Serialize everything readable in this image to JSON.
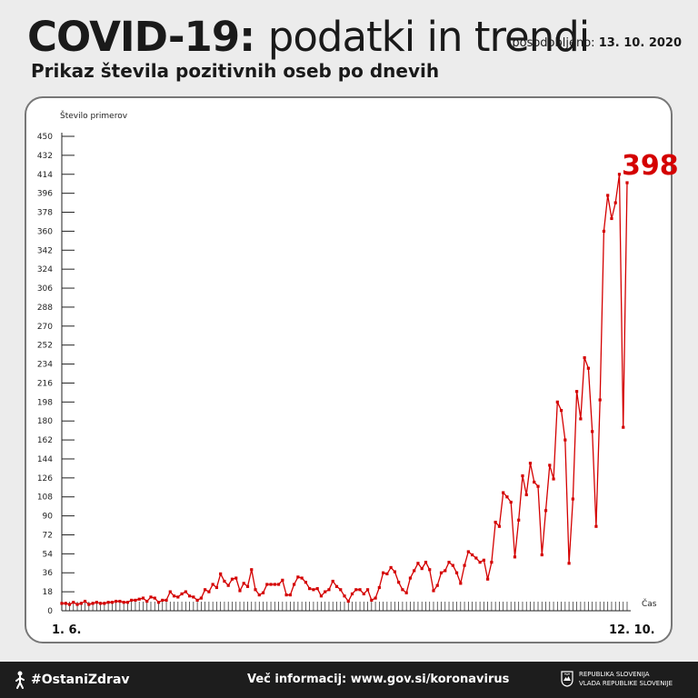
{
  "header": {
    "title_bold": "COVID-19:",
    "title_light": "podatki in trendi",
    "updated_label": "posodobljeno:",
    "updated_date": "13. 10. 2020",
    "subtitle": "Prikaz števila pozitivnih oseb po dnevih"
  },
  "chart_data": {
    "type": "line",
    "title": "Prikaz števila pozitivnih oseb po dnevih",
    "ylabel": "Število primerov",
    "xlabel": "Čas",
    "ylim": [
      0,
      450
    ],
    "yticks": [
      0,
      18,
      36,
      54,
      72,
      90,
      108,
      126,
      144,
      162,
      180,
      198,
      216,
      234,
      252,
      270,
      288,
      306,
      324,
      342,
      360,
      378,
      396,
      414,
      432,
      450
    ],
    "x_start_label": "1. 6.",
    "x_end_label": "12. 10.",
    "highlight_value": "398",
    "color": "#d40000",
    "series": [
      {
        "values": [
          7,
          7,
          6,
          8,
          6,
          7,
          9,
          6,
          7,
          8,
          7,
          7,
          8,
          8,
          9,
          9,
          8,
          8,
          10,
          10,
          11,
          12,
          9,
          13,
          12,
          8,
          10,
          10,
          18,
          14,
          13,
          16,
          18,
          14,
          13,
          10,
          12,
          20,
          18,
          25,
          22,
          35,
          28,
          24,
          30,
          31,
          19,
          26,
          23,
          39,
          20,
          15,
          17,
          25,
          25,
          25,
          25,
          29,
          15,
          15,
          25,
          32,
          31,
          27,
          21,
          20,
          21,
          14,
          18,
          20,
          28,
          23,
          20,
          14,
          9,
          16,
          20,
          20,
          16,
          20,
          10,
          12,
          22,
          36,
          35,
          41,
          37,
          27,
          20,
          17,
          31,
          38,
          45,
          40,
          46,
          39,
          19,
          24,
          36,
          38,
          46,
          43,
          36,
          26,
          43,
          56,
          53,
          50,
          46,
          48,
          30,
          46,
          84,
          80,
          112,
          108,
          103,
          51,
          86,
          128,
          110,
          140,
          122,
          118,
          53,
          95,
          138,
          125,
          198,
          190,
          162,
          45,
          106,
          208,
          182,
          240,
          230,
          170,
          80,
          200,
          360,
          394,
          372,
          387,
          414,
          174,
          406
        ]
      }
    ]
  },
  "footer": {
    "hashtag": "#OstaniZdrav",
    "info": "Več informacij: www.gov.si/koronavirus",
    "gov_line1": "REPUBLIKA SLOVENIJA",
    "gov_line2": "VLADA REPUBLIKE SLOVENIJE"
  },
  "icons": {
    "hashtag_icon": "stay-home-figure-icon",
    "gov_icon": "slovenia-crest-icon"
  }
}
